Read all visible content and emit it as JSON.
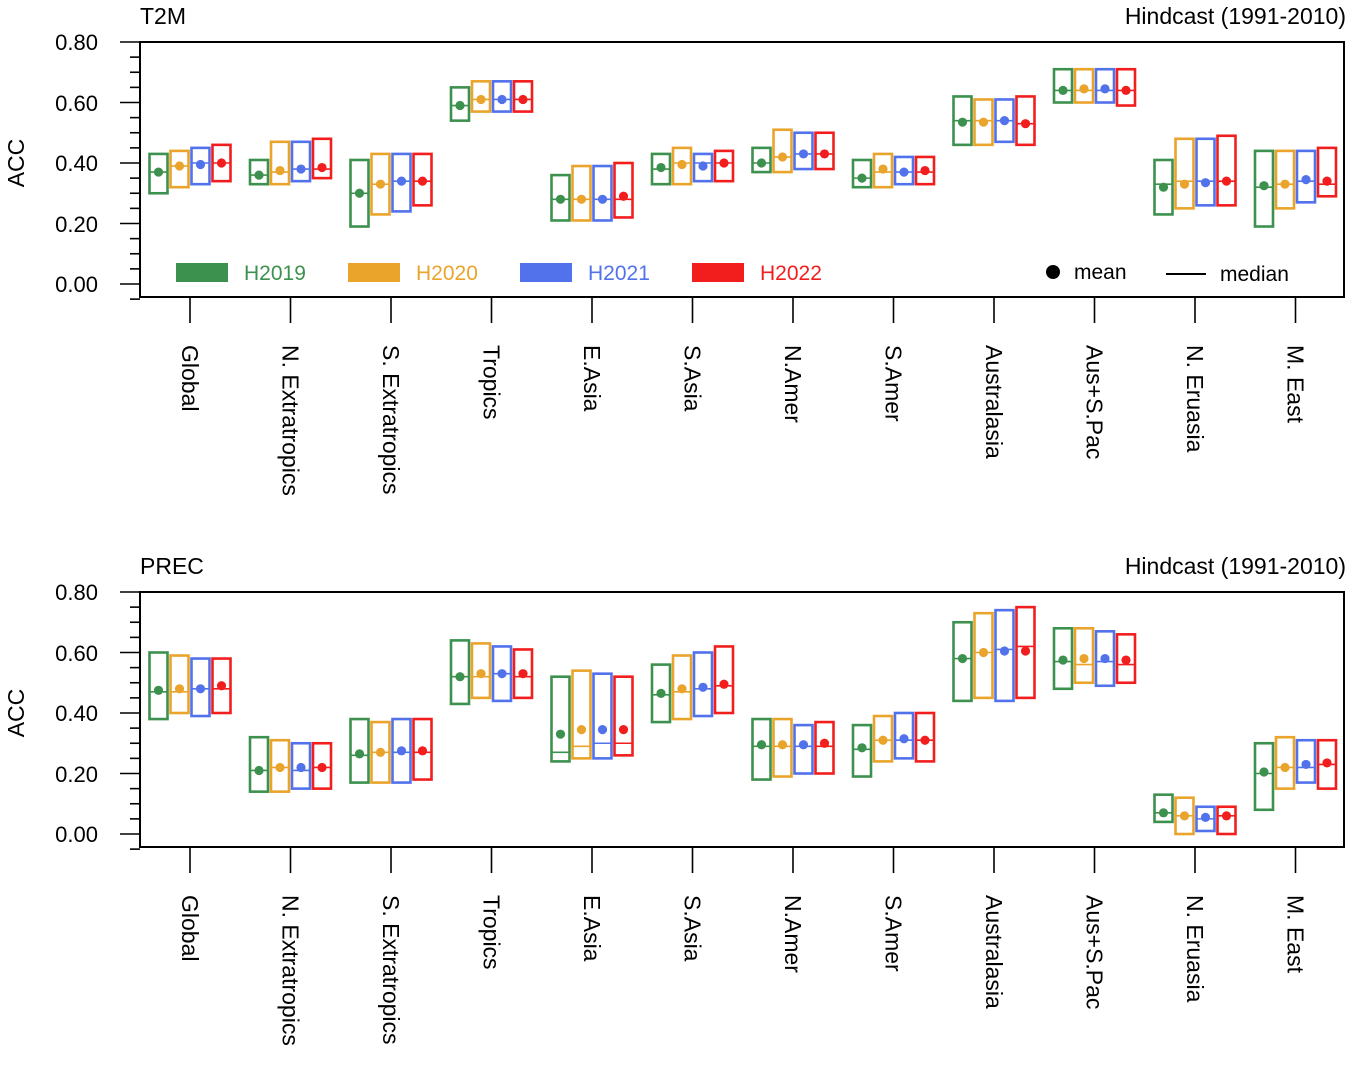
{
  "legend": {
    "series_labels": [
      "H2019",
      "H2020",
      "H2021",
      "H2022"
    ],
    "mean_label": "mean",
    "median_label": "median"
  },
  "colors": {
    "H2019": "#3d914e",
    "H2020": "#eaa42c",
    "H2021": "#5272ec",
    "H2022": "#f21e1e"
  },
  "chart_data": [
    {
      "type": "box",
      "title": "T2M",
      "subtitle": "Hindcast (1991-2010)",
      "ylabel": "ACC",
      "ylim": [
        0.0,
        0.8
      ],
      "yticks": [
        "0.00",
        "0.20",
        "0.40",
        "0.60",
        "0.80"
      ],
      "categories": [
        "Global",
        "N. Extratropics",
        "S. Extratropics",
        "Tropics",
        "E.Asia",
        "S.Asia",
        "N.Amer",
        "S.Amer",
        "Australasia",
        "Aus+S.Pac",
        "N. Eruasia",
        "M. East"
      ],
      "series": [
        {
          "name": "H2019",
          "low": [
            0.3,
            0.33,
            0.19,
            0.54,
            0.21,
            0.33,
            0.37,
            0.32,
            0.46,
            0.6,
            0.23,
            0.19
          ],
          "high": [
            0.43,
            0.41,
            0.41,
            0.65,
            0.36,
            0.43,
            0.45,
            0.41,
            0.62,
            0.71,
            0.41,
            0.44
          ],
          "median": [
            0.37,
            0.36,
            0.3,
            0.59,
            0.28,
            0.38,
            0.4,
            0.35,
            0.54,
            0.64,
            0.33,
            0.32
          ],
          "mean": [
            0.37,
            0.36,
            0.3,
            0.59,
            0.28,
            0.385,
            0.4,
            0.35,
            0.535,
            0.64,
            0.32,
            0.325
          ]
        },
        {
          "name": "H2020",
          "low": [
            0.32,
            0.33,
            0.23,
            0.57,
            0.21,
            0.33,
            0.37,
            0.32,
            0.46,
            0.6,
            0.25,
            0.25
          ],
          "high": [
            0.44,
            0.47,
            0.43,
            0.67,
            0.39,
            0.45,
            0.51,
            0.43,
            0.61,
            0.71,
            0.48,
            0.44
          ],
          "median": [
            0.39,
            0.37,
            0.33,
            0.61,
            0.28,
            0.4,
            0.42,
            0.37,
            0.54,
            0.64,
            0.34,
            0.33
          ],
          "mean": [
            0.39,
            0.375,
            0.33,
            0.61,
            0.28,
            0.395,
            0.42,
            0.38,
            0.535,
            0.645,
            0.33,
            0.33
          ]
        },
        {
          "name": "H2021",
          "low": [
            0.33,
            0.34,
            0.24,
            0.57,
            0.21,
            0.34,
            0.38,
            0.33,
            0.47,
            0.6,
            0.26,
            0.27
          ],
          "high": [
            0.45,
            0.47,
            0.43,
            0.67,
            0.39,
            0.43,
            0.5,
            0.42,
            0.61,
            0.71,
            0.48,
            0.44
          ],
          "median": [
            0.4,
            0.38,
            0.34,
            0.61,
            0.28,
            0.4,
            0.43,
            0.37,
            0.54,
            0.64,
            0.34,
            0.34
          ],
          "mean": [
            0.395,
            0.38,
            0.34,
            0.61,
            0.28,
            0.39,
            0.43,
            0.37,
            0.54,
            0.645,
            0.335,
            0.345
          ]
        },
        {
          "name": "H2022",
          "low": [
            0.34,
            0.35,
            0.26,
            0.57,
            0.22,
            0.34,
            0.38,
            0.33,
            0.46,
            0.59,
            0.26,
            0.29
          ],
          "high": [
            0.46,
            0.48,
            0.43,
            0.67,
            0.4,
            0.44,
            0.5,
            0.42,
            0.62,
            0.71,
            0.49,
            0.45
          ],
          "median": [
            0.4,
            0.38,
            0.34,
            0.61,
            0.28,
            0.4,
            0.43,
            0.37,
            0.53,
            0.64,
            0.34,
            0.33
          ],
          "mean": [
            0.4,
            0.385,
            0.34,
            0.61,
            0.29,
            0.4,
            0.43,
            0.375,
            0.53,
            0.64,
            0.34,
            0.34
          ]
        }
      ]
    },
    {
      "type": "box",
      "title": "PREC",
      "subtitle": "Hindcast (1991-2010)",
      "ylabel": "ACC",
      "ylim": [
        0.0,
        0.8
      ],
      "yticks": [
        "0.00",
        "0.20",
        "0.40",
        "0.60",
        "0.80"
      ],
      "categories": [
        "Global",
        "N. Extratropics",
        "S. Extratropics",
        "Tropics",
        "E.Asia",
        "S.Asia",
        "N.Amer",
        "S.Amer",
        "Australasia",
        "Aus+S.Pac",
        "N. Eruasia",
        "M. East"
      ],
      "series": [
        {
          "name": "H2019",
          "low": [
            0.38,
            0.14,
            0.17,
            0.43,
            0.24,
            0.37,
            0.18,
            0.19,
            0.44,
            0.48,
            0.04,
            0.08
          ],
          "high": [
            0.6,
            0.32,
            0.38,
            0.64,
            0.52,
            0.56,
            0.38,
            0.36,
            0.7,
            0.68,
            0.13,
            0.3
          ],
          "median": [
            0.47,
            0.21,
            0.26,
            0.52,
            0.27,
            0.46,
            0.29,
            0.28,
            0.58,
            0.57,
            0.07,
            0.2
          ],
          "mean": [
            0.475,
            0.21,
            0.265,
            0.52,
            0.33,
            0.465,
            0.295,
            0.285,
            0.58,
            0.575,
            0.07,
            0.205
          ]
        },
        {
          "name": "H2020",
          "low": [
            0.4,
            0.14,
            0.17,
            0.45,
            0.25,
            0.38,
            0.19,
            0.24,
            0.45,
            0.5,
            0.0,
            0.15
          ],
          "high": [
            0.59,
            0.31,
            0.37,
            0.63,
            0.54,
            0.59,
            0.38,
            0.39,
            0.73,
            0.68,
            0.12,
            0.32
          ],
          "median": [
            0.47,
            0.22,
            0.27,
            0.52,
            0.29,
            0.47,
            0.29,
            0.31,
            0.6,
            0.56,
            0.06,
            0.22
          ],
          "mean": [
            0.48,
            0.22,
            0.27,
            0.53,
            0.345,
            0.48,
            0.295,
            0.31,
            0.6,
            0.58,
            0.06,
            0.22
          ]
        },
        {
          "name": "H2021",
          "low": [
            0.39,
            0.15,
            0.17,
            0.44,
            0.25,
            0.39,
            0.2,
            0.25,
            0.44,
            0.49,
            0.01,
            0.17
          ],
          "high": [
            0.58,
            0.3,
            0.38,
            0.62,
            0.53,
            0.6,
            0.36,
            0.4,
            0.74,
            0.67,
            0.09,
            0.31
          ],
          "median": [
            0.48,
            0.21,
            0.27,
            0.53,
            0.3,
            0.48,
            0.29,
            0.31,
            0.61,
            0.57,
            0.05,
            0.22
          ],
          "mean": [
            0.48,
            0.22,
            0.275,
            0.53,
            0.345,
            0.485,
            0.295,
            0.315,
            0.605,
            0.58,
            0.055,
            0.23
          ]
        },
        {
          "name": "H2022",
          "low": [
            0.4,
            0.15,
            0.18,
            0.45,
            0.26,
            0.4,
            0.2,
            0.24,
            0.45,
            0.5,
            0.0,
            0.15
          ],
          "high": [
            0.58,
            0.3,
            0.38,
            0.61,
            0.52,
            0.62,
            0.37,
            0.4,
            0.75,
            0.66,
            0.09,
            0.31
          ],
          "median": [
            0.48,
            0.22,
            0.27,
            0.52,
            0.3,
            0.49,
            0.29,
            0.31,
            0.62,
            0.56,
            0.06,
            0.23
          ],
          "mean": [
            0.49,
            0.22,
            0.275,
            0.53,
            0.345,
            0.495,
            0.3,
            0.31,
            0.605,
            0.575,
            0.06,
            0.235
          ]
        }
      ]
    }
  ]
}
